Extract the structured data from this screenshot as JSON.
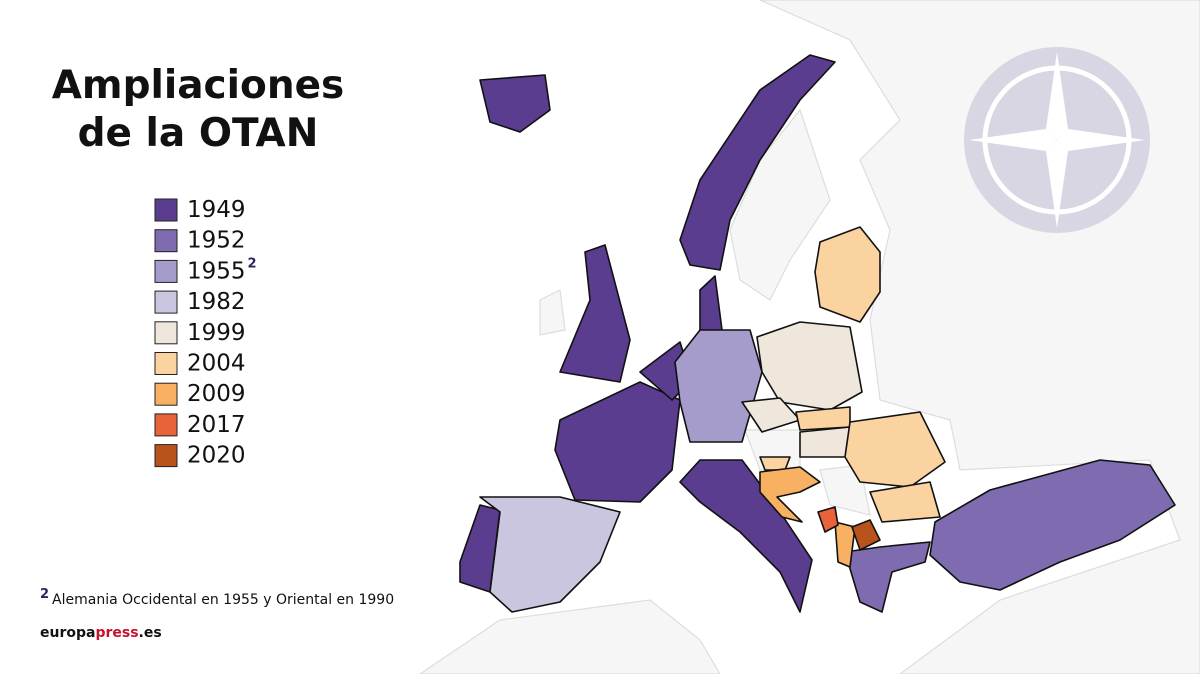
{
  "title": [
    "Ampliaciones",
    "de la OTAN"
  ],
  "legend": [
    {
      "label": "1949",
      "color": "#5a3d8f"
    },
    {
      "label": "1952",
      "color": "#7e6bb0"
    },
    {
      "label": "1955",
      "color": "#a59ccc",
      "note": "2"
    },
    {
      "label": "1982",
      "color": "#cac6e0"
    },
    {
      "label": "1999",
      "color": "#efe6dc"
    },
    {
      "label": "2004",
      "color": "#fbd3a0"
    },
    {
      "label": "2009",
      "color": "#f8b062"
    },
    {
      "label": "2017",
      "color": "#e8623a"
    },
    {
      "label": "2020",
      "color": "#b8531c"
    }
  ],
  "footnote": {
    "mark": "2",
    "text": "Alemania Occidental en 1955 y Oriental en 1990"
  },
  "source": [
    "europa",
    "press",
    ".es"
  ]
}
